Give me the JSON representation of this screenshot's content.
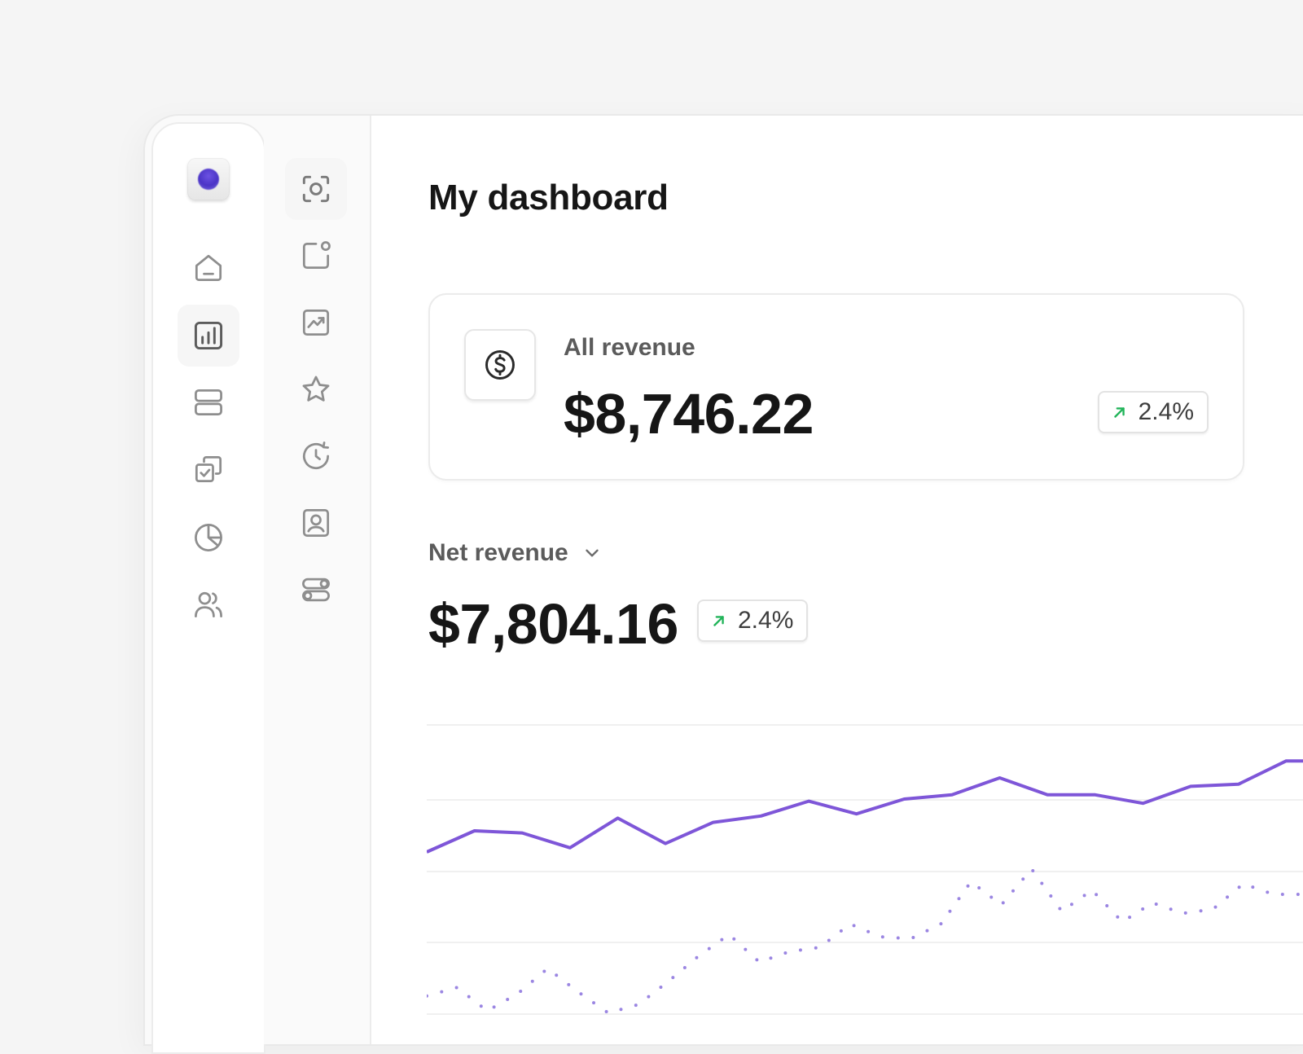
{
  "header": {
    "title": "My dashboard"
  },
  "primary_nav": [
    {
      "icon": "home-icon",
      "active": false
    },
    {
      "icon": "bar-chart-icon",
      "active": true
    },
    {
      "icon": "layers-icon",
      "active": false
    },
    {
      "icon": "check-squares-icon",
      "active": false
    },
    {
      "icon": "pie-chart-icon",
      "active": false
    },
    {
      "icon": "users-icon",
      "active": false
    }
  ],
  "secondary_nav": [
    {
      "icon": "scan-icon",
      "active": true
    },
    {
      "icon": "notification-square-icon",
      "active": false
    },
    {
      "icon": "image-chart-icon",
      "active": false
    },
    {
      "icon": "star-icon",
      "active": false
    },
    {
      "icon": "clock-refresh-icon",
      "active": false
    },
    {
      "icon": "user-square-icon",
      "active": false
    },
    {
      "icon": "toggles-icon",
      "active": false
    }
  ],
  "all_revenue": {
    "icon": "dollar-circle-icon",
    "label": "All revenue",
    "value": "$8,746.22",
    "change": "2.4%"
  },
  "net_revenue": {
    "label": "Net revenue",
    "value": "$7,804.16",
    "change": "2.4%"
  },
  "colors": {
    "accent": "#7e56d8",
    "accent_dotted": "#9b86e2",
    "trend_up": "#22b45a",
    "text_primary": "#161616",
    "text_secondary": "#5b5b5b"
  },
  "chart_data": {
    "type": "line",
    "grid": true,
    "series": [
      {
        "values": [
          100,
          110,
          109,
          102,
          116,
          104,
          114,
          117,
          124,
          118,
          125,
          127,
          135,
          127,
          127,
          123,
          131,
          132,
          143,
          143
        ]
      },
      {
        "values": [
          32,
          36,
          25,
          33,
          45,
          34,
          24,
          28,
          39,
          51,
          61,
          48,
          53,
          55,
          66,
          60,
          59,
          66,
          86,
          75,
          92,
          72,
          82,
          67,
          76,
          71,
          73,
          85,
          80,
          80,
          90
        ]
      }
    ]
  }
}
